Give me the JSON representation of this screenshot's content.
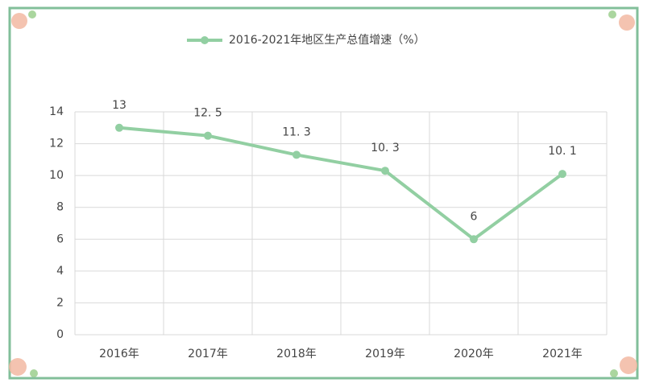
{
  "chart_data": {
    "type": "line",
    "categories": [
      "2016年",
      "2017年",
      "2018年",
      "2019年",
      "2020年",
      "2021年"
    ],
    "series": [
      {
        "name": "2016-2021年地区生产总值增速（%）",
        "color": "#92cfa2",
        "values": [
          13,
          12.5,
          11.3,
          10.3,
          6,
          10.1
        ],
        "value_labels": [
          "13",
          "12. 5",
          "11. 3",
          "10. 3",
          "6",
          "10. 1"
        ]
      }
    ],
    "ylim": [
      0,
      14
    ],
    "yticks": [
      0,
      2,
      4,
      6,
      8,
      10,
      12,
      14
    ],
    "grid": true,
    "legend": "top"
  }
}
